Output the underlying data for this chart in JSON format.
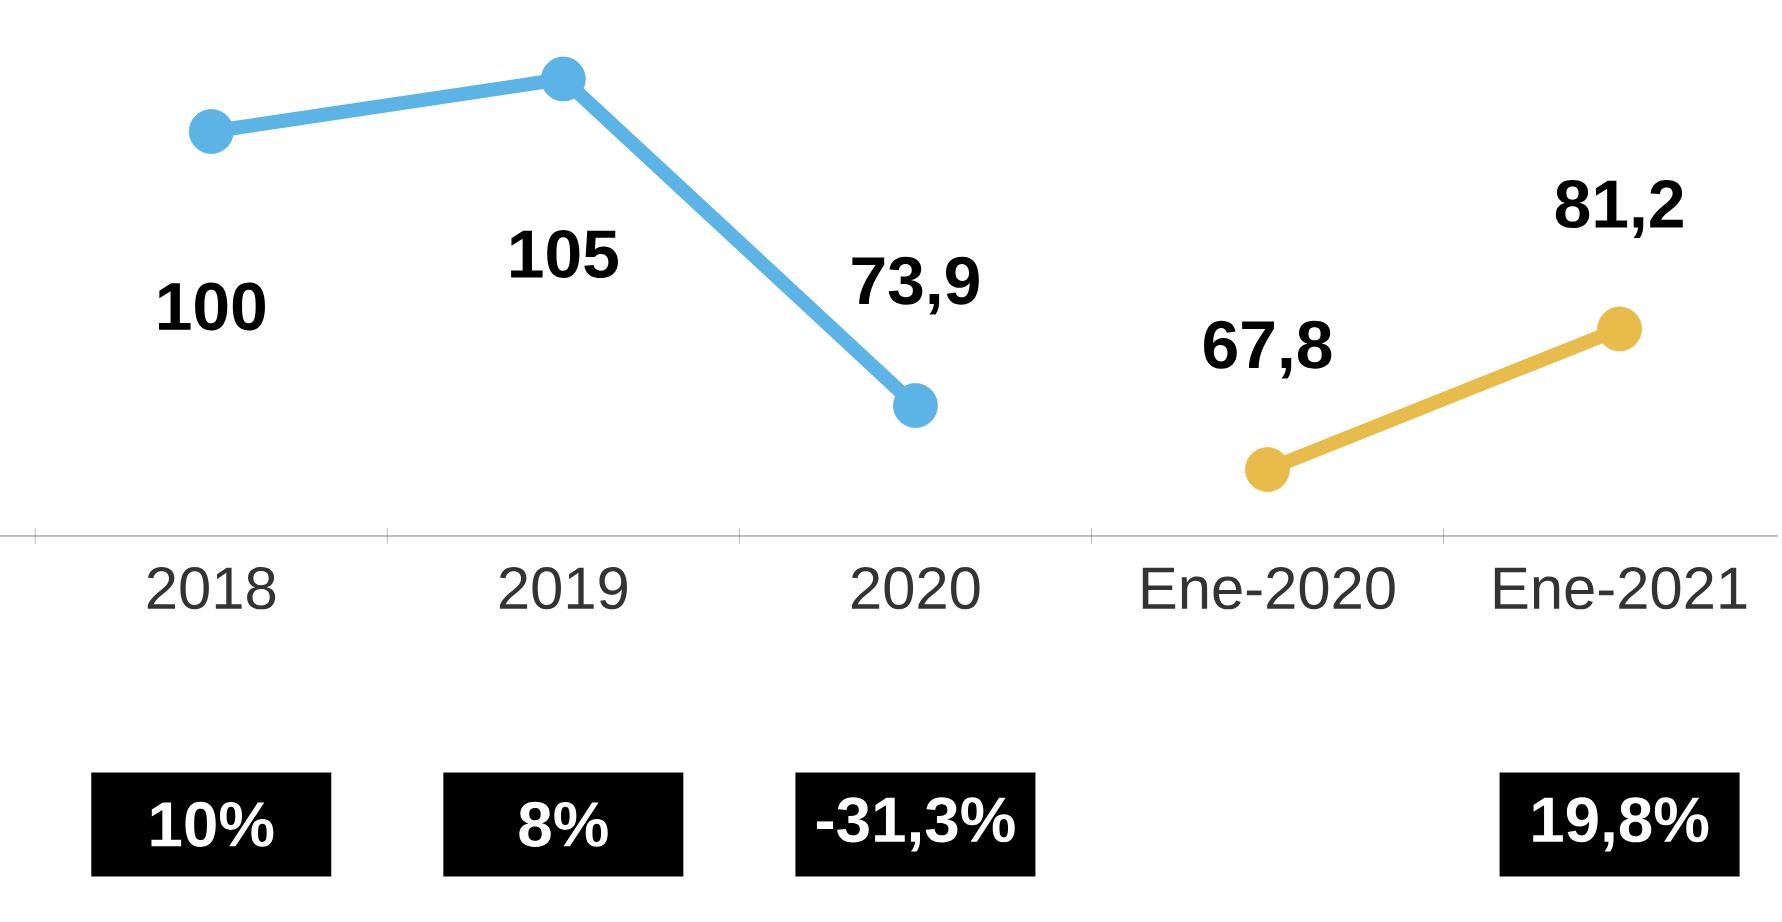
{
  "chart_data": {
    "type": "line",
    "categories": [
      "2018",
      "2019",
      "2020",
      "Ene-2020",
      "Ene-2021"
    ],
    "series": [
      {
        "color": "#5bb4e5",
        "values": [
          100,
          105,
          73.9,
          null,
          null
        ],
        "value_labels": [
          "100",
          "105",
          "73,9",
          null,
          null
        ]
      },
      {
        "color": "#e8bc4a",
        "values": [
          null,
          null,
          null,
          67.8,
          81.2
        ],
        "value_labels": [
          null,
          null,
          null,
          "67,8",
          "81,2"
        ]
      }
    ],
    "marker": "circle",
    "grid": false,
    "legend": false,
    "annotations": [
      "10%",
      "8%",
      "-31,3%",
      "19,8%"
    ]
  }
}
